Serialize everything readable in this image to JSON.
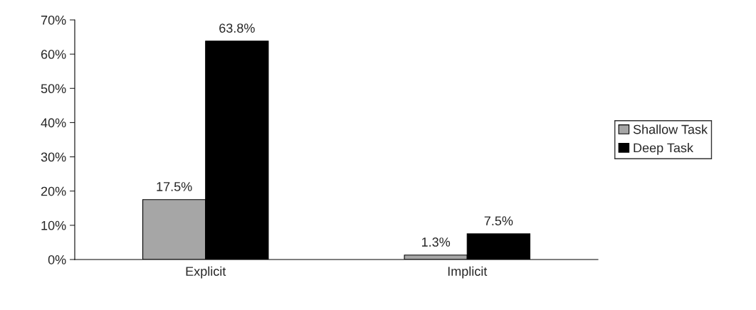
{
  "chart_data": {
    "type": "bar",
    "categories": [
      "Explicit",
      "Implicit"
    ],
    "series": [
      {
        "name": "Shallow Task",
        "color": "#a6a6a6",
        "values": [
          17.5,
          1.3
        ],
        "value_labels": [
          "17.5%",
          "1.3%"
        ]
      },
      {
        "name": "Deep Task",
        "color": "#000000",
        "values": [
          63.8,
          7.5
        ],
        "value_labels": [
          "63.8%",
          "7.5%"
        ]
      }
    ],
    "ylim": [
      0,
      70
    ],
    "yticks": [
      {
        "value": 0,
        "label": "0%"
      },
      {
        "value": 10,
        "label": "10%"
      },
      {
        "value": 20,
        "label": "20%"
      },
      {
        "value": 30,
        "label": "30%"
      },
      {
        "value": 40,
        "label": "40%"
      },
      {
        "value": 50,
        "label": "50%"
      },
      {
        "value": 60,
        "label": "60%"
      },
      {
        "value": 70,
        "label": "70%"
      }
    ],
    "grid": false,
    "legend": "right"
  }
}
